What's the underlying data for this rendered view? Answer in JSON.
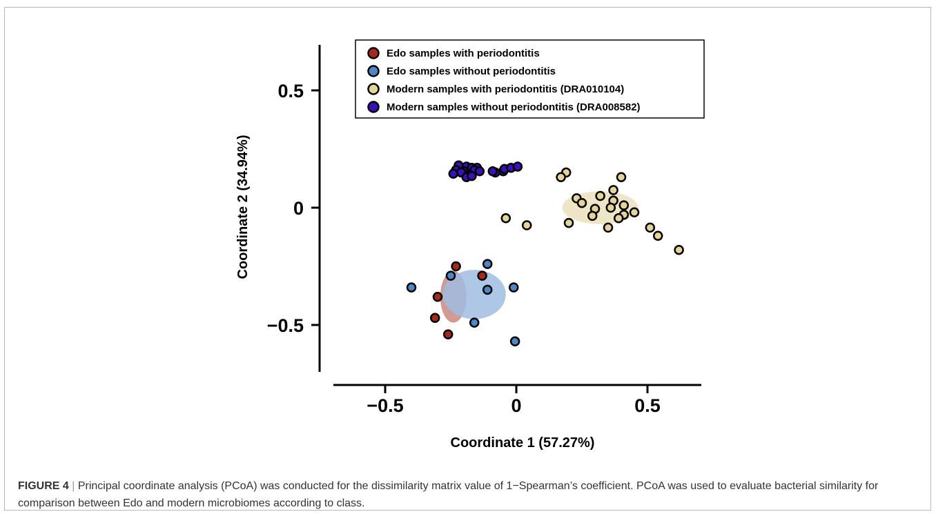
{
  "caption": {
    "label": "FIGURE 4",
    "separator": " | ",
    "text": "Principal coordinate analysis (PCoA) was conducted for the dissimilarity matrix value of 1−Spearman’s coefficient. PCoA was used to evaluate bacterial similarity for comparison between Edo and modern microbiomes according to class."
  },
  "chart_data": {
    "type": "scatter",
    "title": "",
    "xlabel": "Coordinate 1 (57.27%)",
    "ylabel": "Coordinate 2 (34.94%)",
    "xlim": [
      -0.7,
      0.7
    ],
    "ylim": [
      -0.7,
      0.7
    ],
    "xticks": [
      -0.5,
      0,
      0.5
    ],
    "yticks": [
      0.5,
      0,
      -0.5
    ],
    "xtick_labels": [
      "−0.5",
      "0",
      "0.5"
    ],
    "ytick_labels": [
      "0.5",
      "0",
      "−0.5"
    ],
    "grid": false,
    "legend_position": "top",
    "series": [
      {
        "name": "Edo samples with periodontitis",
        "color": "#a52a1a",
        "ellipse": {
          "cx": -0.24,
          "cy": -0.38,
          "rx": 0.05,
          "ry": 0.11,
          "color": "#c98a80"
        },
        "points": [
          [
            -0.23,
            -0.25
          ],
          [
            -0.13,
            -0.29
          ],
          [
            -0.3,
            -0.38
          ],
          [
            -0.31,
            -0.47
          ],
          [
            -0.26,
            -0.54
          ]
        ]
      },
      {
        "name": "Edo samples without periodontitis",
        "color": "#4f86c6",
        "ellipse": {
          "cx": -0.16,
          "cy": -0.37,
          "rx": 0.12,
          "ry": 0.105,
          "color": "#9fbde0"
        },
        "points": [
          [
            -0.4,
            -0.34
          ],
          [
            -0.25,
            -0.29
          ],
          [
            -0.11,
            -0.24
          ],
          [
            -0.11,
            -0.35
          ],
          [
            -0.01,
            -0.34
          ],
          [
            -0.16,
            -0.49
          ],
          [
            -0.005,
            -0.57
          ]
        ]
      },
      {
        "name": "Modern samples with periodontitis (DRA010104)",
        "color": "#e6d39a",
        "ellipse": {
          "cx": 0.32,
          "cy": 0.0,
          "rx": 0.145,
          "ry": 0.07,
          "color": "#ece0bd"
        },
        "points": [
          [
            0.19,
            0.15
          ],
          [
            0.17,
            0.13
          ],
          [
            0.4,
            0.13
          ],
          [
            0.37,
            0.075
          ],
          [
            0.23,
            0.04
          ],
          [
            0.25,
            0.02
          ],
          [
            0.32,
            0.05
          ],
          [
            0.37,
            0.03
          ],
          [
            0.3,
            -0.005
          ],
          [
            0.36,
            0.0
          ],
          [
            0.41,
            0.01
          ],
          [
            0.45,
            -0.02
          ],
          [
            0.29,
            -0.035
          ],
          [
            0.41,
            -0.03
          ],
          [
            0.39,
            -0.045
          ],
          [
            0.35,
            -0.085
          ],
          [
            0.2,
            -0.065
          ],
          [
            -0.04,
            -0.045
          ],
          [
            0.04,
            -0.075
          ],
          [
            0.51,
            -0.085
          ],
          [
            0.54,
            -0.12
          ],
          [
            0.62,
            -0.18
          ]
        ]
      },
      {
        "name": "Modern samples without periodontitis (DRA008582)",
        "color": "#3a10b8",
        "ellipse": {
          "cx": -0.17,
          "cy": 0.155,
          "rx": 0.05,
          "ry": 0.014,
          "color": "#9a90c0"
        },
        "points": [
          [
            -0.22,
            0.18
          ],
          [
            -0.19,
            0.175
          ],
          [
            -0.17,
            0.17
          ],
          [
            -0.15,
            0.17
          ],
          [
            -0.23,
            0.16
          ],
          [
            -0.2,
            0.155
          ],
          [
            -0.16,
            0.16
          ],
          [
            -0.14,
            0.155
          ],
          [
            -0.21,
            0.15
          ],
          [
            -0.18,
            0.14
          ],
          [
            -0.24,
            0.145
          ],
          [
            -0.19,
            0.13
          ],
          [
            -0.17,
            0.135
          ],
          [
            -0.08,
            0.15
          ],
          [
            -0.05,
            0.155
          ],
          [
            -0.045,
            0.165
          ],
          [
            -0.02,
            0.17
          ],
          [
            0.005,
            0.175
          ],
          [
            -0.09,
            0.155
          ]
        ]
      }
    ]
  }
}
